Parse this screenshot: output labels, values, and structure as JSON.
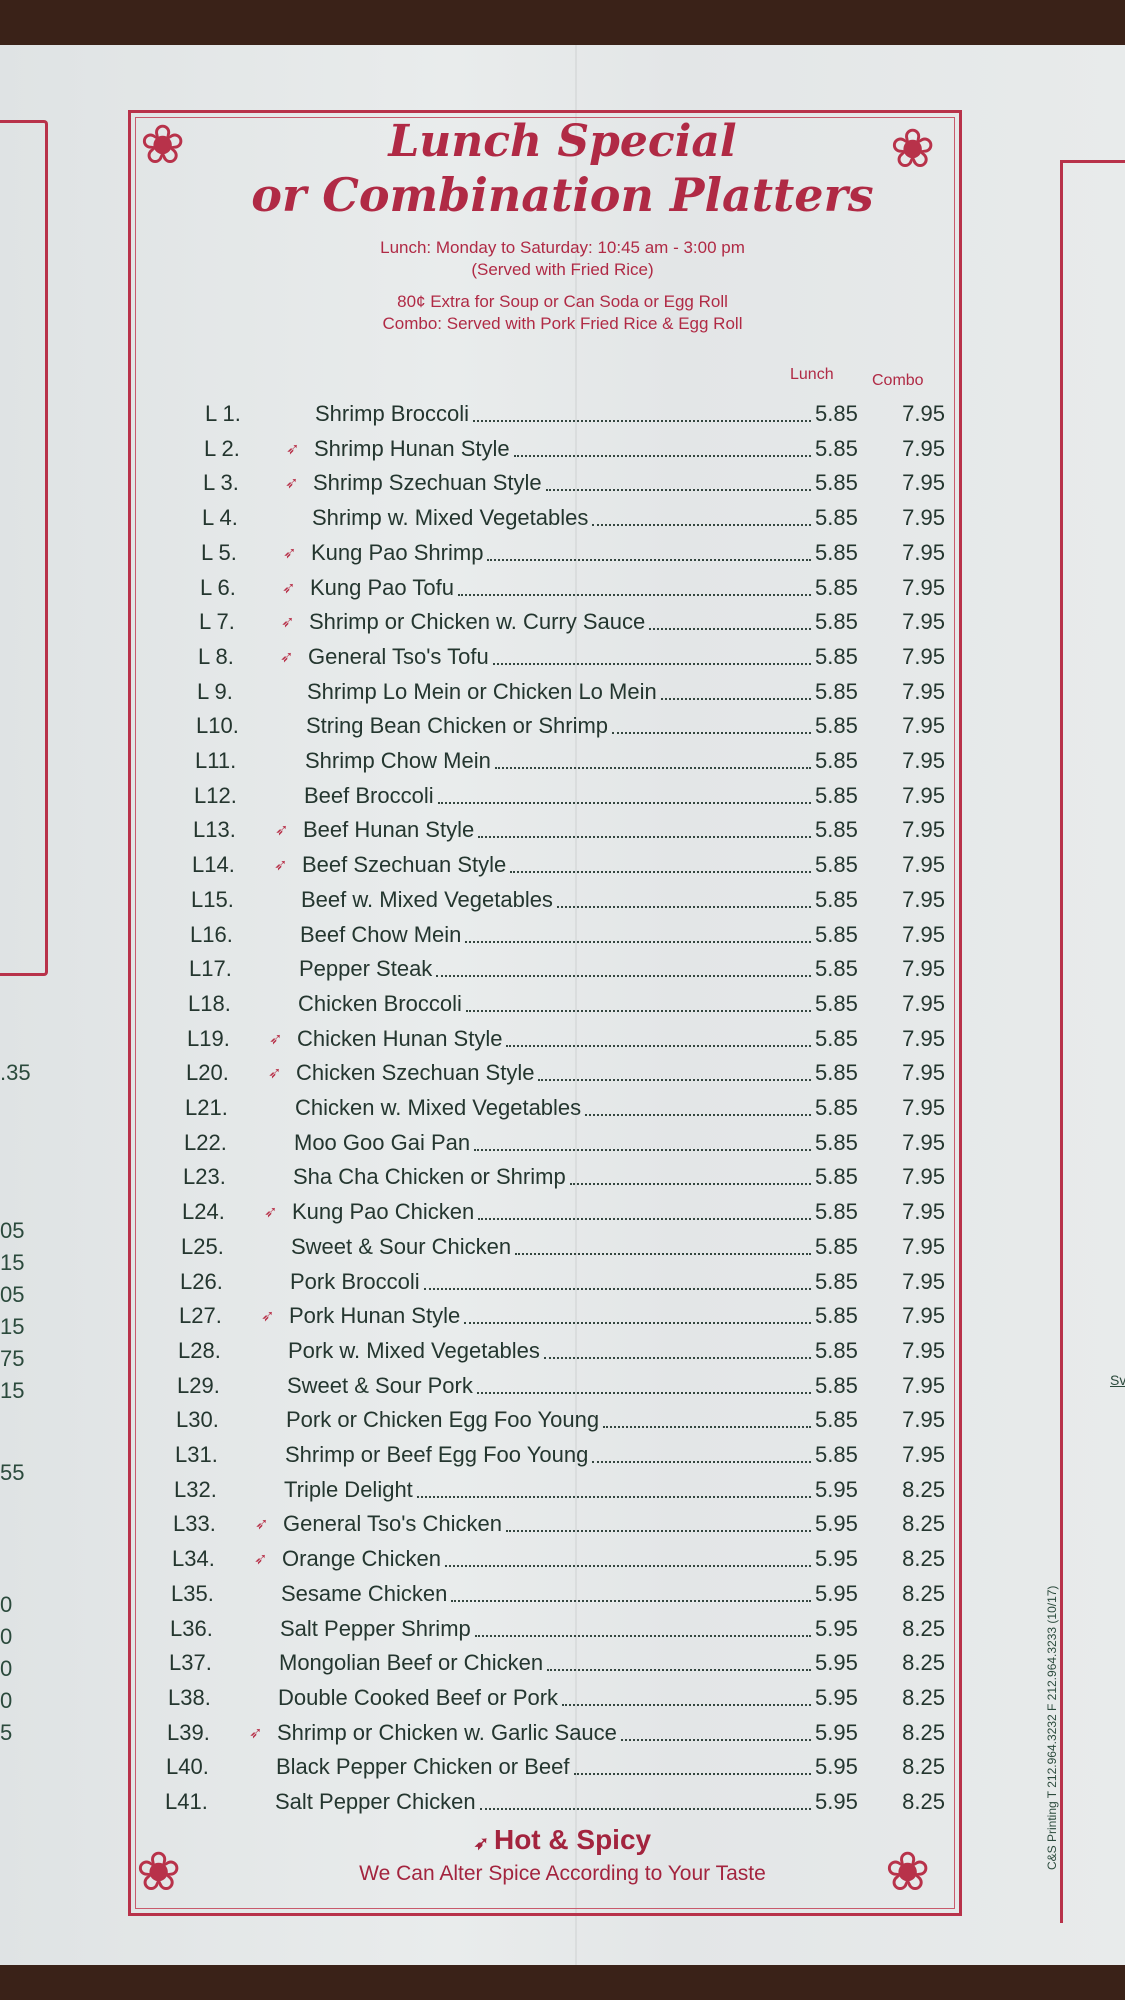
{
  "colors": {
    "accent": "#b02a45",
    "text": "#24362f",
    "paper": "#e6e9ea"
  },
  "menu": {
    "title_line1": "Lunch Special",
    "title_line2": "or Combination Platters",
    "hours": "Lunch: Monday to Saturday: 10:45 am - 3:00 pm",
    "served": "(Served with Fried Rice)",
    "extra": "80¢ Extra for Soup or Can Soda or Egg Roll",
    "combo_note": "Combo: Served with Pork Fried Rice & Egg Roll",
    "col_lunch": "Lunch",
    "col_combo": "Combo",
    "spicy_icon": "pepper-icon",
    "items": [
      {
        "code": "L 1.",
        "name": "Shrimp Broccoli",
        "spicy": false,
        "lunch": "5.85",
        "combo": "7.95"
      },
      {
        "code": "L 2.",
        "name": "Shrimp Hunan Style",
        "spicy": true,
        "lunch": "5.85",
        "combo": "7.95"
      },
      {
        "code": "L 3.",
        "name": "Shrimp Szechuan Style",
        "spicy": true,
        "lunch": "5.85",
        "combo": "7.95"
      },
      {
        "code": "L 4.",
        "name": "Shrimp w. Mixed Vegetables",
        "spicy": false,
        "lunch": "5.85",
        "combo": "7.95"
      },
      {
        "code": "L 5.",
        "name": "Kung Pao Shrimp",
        "spicy": true,
        "lunch": "5.85",
        "combo": "7.95"
      },
      {
        "code": "L 6.",
        "name": "Kung Pao Tofu",
        "spicy": true,
        "lunch": "5.85",
        "combo": "7.95"
      },
      {
        "code": "L 7.",
        "name": "Shrimp or Chicken w. Curry Sauce",
        "spicy": true,
        "lunch": "5.85",
        "combo": "7.95"
      },
      {
        "code": "L 8.",
        "name": "General Tso's Tofu",
        "spicy": true,
        "lunch": "5.85",
        "combo": "7.95"
      },
      {
        "code": "L 9.",
        "name": "Shrimp Lo Mein or Chicken Lo Mein",
        "spicy": false,
        "lunch": "5.85",
        "combo": "7.95"
      },
      {
        "code": "L10.",
        "name": "String Bean Chicken or Shrimp",
        "spicy": false,
        "lunch": "5.85",
        "combo": "7.95"
      },
      {
        "code": "L11.",
        "name": "Shrimp Chow Mein",
        "spicy": false,
        "lunch": "5.85",
        "combo": "7.95"
      },
      {
        "code": "L12.",
        "name": "Beef Broccoli",
        "spicy": false,
        "lunch": "5.85",
        "combo": "7.95"
      },
      {
        "code": "L13.",
        "name": "Beef Hunan Style",
        "spicy": true,
        "lunch": "5.85",
        "combo": "7.95"
      },
      {
        "code": "L14.",
        "name": "Beef Szechuan Style",
        "spicy": true,
        "lunch": "5.85",
        "combo": "7.95"
      },
      {
        "code": "L15.",
        "name": "Beef w. Mixed Vegetables",
        "spicy": false,
        "lunch": "5.85",
        "combo": "7.95"
      },
      {
        "code": "L16.",
        "name": "Beef Chow Mein",
        "spicy": false,
        "lunch": "5.85",
        "combo": "7.95"
      },
      {
        "code": "L17.",
        "name": "Pepper Steak",
        "spicy": false,
        "lunch": "5.85",
        "combo": "7.95"
      },
      {
        "code": "L18.",
        "name": "Chicken Broccoli",
        "spicy": false,
        "lunch": "5.85",
        "combo": "7.95"
      },
      {
        "code": "L19.",
        "name": "Chicken Hunan Style",
        "spicy": true,
        "lunch": "5.85",
        "combo": "7.95"
      },
      {
        "code": "L20.",
        "name": "Chicken Szechuan Style",
        "spicy": true,
        "lunch": "5.85",
        "combo": "7.95"
      },
      {
        "code": "L21.",
        "name": "Chicken w. Mixed Vegetables",
        "spicy": false,
        "lunch": "5.85",
        "combo": "7.95"
      },
      {
        "code": "L22.",
        "name": "Moo Goo Gai Pan",
        "spicy": false,
        "lunch": "5.85",
        "combo": "7.95"
      },
      {
        "code": "L23.",
        "name": "Sha Cha Chicken or Shrimp",
        "spicy": false,
        "lunch": "5.85",
        "combo": "7.95"
      },
      {
        "code": "L24.",
        "name": "Kung Pao Chicken",
        "spicy": true,
        "lunch": "5.85",
        "combo": "7.95"
      },
      {
        "code": "L25.",
        "name": "Sweet & Sour Chicken",
        "spicy": false,
        "lunch": "5.85",
        "combo": "7.95"
      },
      {
        "code": "L26.",
        "name": "Pork Broccoli",
        "spicy": false,
        "lunch": "5.85",
        "combo": "7.95"
      },
      {
        "code": "L27.",
        "name": "Pork Hunan Style",
        "spicy": true,
        "lunch": "5.85",
        "combo": "7.95"
      },
      {
        "code": "L28.",
        "name": "Pork w. Mixed Vegetables",
        "spicy": false,
        "lunch": "5.85",
        "combo": "7.95"
      },
      {
        "code": "L29.",
        "name": "Sweet & Sour Pork",
        "spicy": false,
        "lunch": "5.85",
        "combo": "7.95"
      },
      {
        "code": "L30.",
        "name": "Pork or Chicken Egg Foo Young",
        "spicy": false,
        "lunch": "5.85",
        "combo": "7.95"
      },
      {
        "code": "L31.",
        "name": "Shrimp or Beef Egg Foo Young",
        "spicy": false,
        "lunch": "5.85",
        "combo": "7.95"
      },
      {
        "code": "L32.",
        "name": "Triple Delight",
        "spicy": false,
        "lunch": "5.95",
        "combo": "8.25"
      },
      {
        "code": "L33.",
        "name": "General Tso's Chicken",
        "spicy": true,
        "lunch": "5.95",
        "combo": "8.25"
      },
      {
        "code": "L34.",
        "name": "Orange Chicken",
        "spicy": true,
        "lunch": "5.95",
        "combo": "8.25"
      },
      {
        "code": "L35.",
        "name": "Sesame Chicken",
        "spicy": false,
        "lunch": "5.95",
        "combo": "8.25"
      },
      {
        "code": "L36.",
        "name": "Salt Pepper Shrimp",
        "spicy": false,
        "lunch": "5.95",
        "combo": "8.25"
      },
      {
        "code": "L37.",
        "name": "Mongolian Beef or Chicken",
        "spicy": false,
        "lunch": "5.95",
        "combo": "8.25"
      },
      {
        "code": "L38.",
        "name": "Double Cooked Beef or Pork",
        "spicy": false,
        "lunch": "5.95",
        "combo": "8.25"
      },
      {
        "code": "L39.",
        "name": "Shrimp or Chicken w. Garlic Sauce",
        "spicy": true,
        "lunch": "5.95",
        "combo": "8.25"
      },
      {
        "code": "L40.",
        "name": "Black Pepper Chicken or Beef",
        "spicy": false,
        "lunch": "5.95",
        "combo": "8.25"
      },
      {
        "code": "L41.",
        "name": "Salt Pepper Chicken",
        "spicy": false,
        "lunch": "5.95",
        "combo": "8.25"
      }
    ],
    "footer_hot": "Hot & Spicy",
    "footer_note": "We Can Alter Spice According to Your Taste"
  },
  "left_panel_prices": [
    ".35",
    "05",
    "15",
    "05",
    "15",
    "75",
    "15",
    "55",
    "0",
    "0",
    "0",
    "0",
    "5"
  ],
  "right_panel": {
    "partial_text": "Sv"
  },
  "printer_credit": "C&S Printing  T 212.964.3232  F 212.964.3233  (10/17)"
}
